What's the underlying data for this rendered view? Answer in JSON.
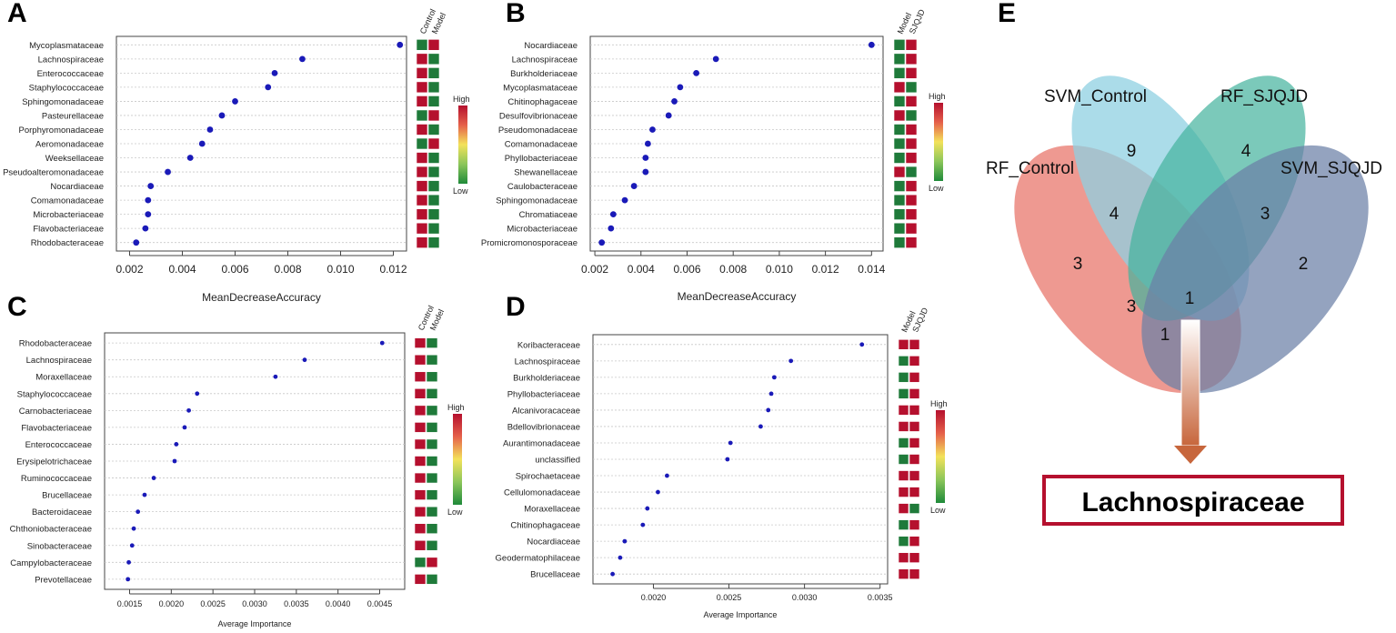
{
  "colors": {
    "point": "#1a1ab8",
    "high": "#b5102e",
    "low": "#1f7a3a"
  },
  "chart_data": [
    {
      "id": "A",
      "panel_label": "A",
      "type": "scatter",
      "xlabel": "MeanDecreaseAccuracy",
      "xlim": [
        0.0015,
        0.0125
      ],
      "xticks": [
        0.002,
        0.004,
        0.006,
        0.008,
        0.01,
        0.012
      ],
      "xtick_labels": [
        "0.002",
        "0.004",
        "0.006",
        "0.008",
        "0.010",
        "0.012"
      ],
      "heatmap_cols": [
        "Control",
        "Model"
      ],
      "legend": {
        "high": "High",
        "low": "Low"
      },
      "rows": [
        {
          "name": "Mycoplasmataceae",
          "value": 0.01225,
          "heat": [
            "L",
            "H"
          ]
        },
        {
          "name": "Lachnospiraceae",
          "value": 0.00855,
          "heat": [
            "H",
            "L"
          ]
        },
        {
          "name": "Enterococcaceae",
          "value": 0.0075,
          "heat": [
            "H",
            "L"
          ]
        },
        {
          "name": "Staphylococcaceae",
          "value": 0.00725,
          "heat": [
            "H",
            "L"
          ]
        },
        {
          "name": "Sphingomonadaceae",
          "value": 0.006,
          "heat": [
            "H",
            "L"
          ]
        },
        {
          "name": "Pasteurellaceae",
          "value": 0.0055,
          "heat": [
            "L",
            "H"
          ]
        },
        {
          "name": "Porphyromonadaceae",
          "value": 0.00505,
          "heat": [
            "H",
            "L"
          ]
        },
        {
          "name": "Aeromonadaceae",
          "value": 0.00475,
          "heat": [
            "L",
            "H"
          ]
        },
        {
          "name": "Weeksellaceae",
          "value": 0.0043,
          "heat": [
            "H",
            "L"
          ]
        },
        {
          "name": "Pseudoalteromonadaceae",
          "value": 0.00345,
          "heat": [
            "H",
            "L"
          ]
        },
        {
          "name": "Nocardiaceae",
          "value": 0.0028,
          "heat": [
            "H",
            "L"
          ]
        },
        {
          "name": "Comamonadaceae",
          "value": 0.0027,
          "heat": [
            "H",
            "L"
          ]
        },
        {
          "name": "Microbacteriaceae",
          "value": 0.0027,
          "heat": [
            "H",
            "L"
          ]
        },
        {
          "name": "Flavobacteriaceae",
          "value": 0.0026,
          "heat": [
            "H",
            "L"
          ]
        },
        {
          "name": "Rhodobacteraceae",
          "value": 0.00225,
          "heat": [
            "H",
            "L"
          ]
        }
      ]
    },
    {
      "id": "B",
      "panel_label": "B",
      "type": "scatter",
      "xlabel": "MeanDecreaseAccuracy",
      "xlim": [
        0.0018,
        0.0145
      ],
      "xticks": [
        0.002,
        0.004,
        0.006,
        0.008,
        0.01,
        0.012,
        0.014
      ],
      "xtick_labels": [
        "0.002",
        "0.004",
        "0.006",
        "0.008",
        "0.010",
        "0.012",
        "0.014"
      ],
      "heatmap_cols": [
        "Model",
        "SJQJD"
      ],
      "legend": {
        "high": "High",
        "low": "Low"
      },
      "rows": [
        {
          "name": "Nocardiaceae",
          "value": 0.014,
          "heat": [
            "L",
            "H"
          ]
        },
        {
          "name": "Lachnospiraceae",
          "value": 0.00725,
          "heat": [
            "L",
            "H"
          ]
        },
        {
          "name": "Burkholderiaceae",
          "value": 0.0064,
          "heat": [
            "L",
            "H"
          ]
        },
        {
          "name": "Mycoplasmataceae",
          "value": 0.0057,
          "heat": [
            "H",
            "L"
          ]
        },
        {
          "name": "Chitinophagaceae",
          "value": 0.00545,
          "heat": [
            "L",
            "H"
          ]
        },
        {
          "name": "Desulfovibrionaceae",
          "value": 0.0052,
          "heat": [
            "H",
            "L"
          ]
        },
        {
          "name": "Pseudomonadaceae",
          "value": 0.0045,
          "heat": [
            "L",
            "H"
          ]
        },
        {
          "name": "Comamonadaceae",
          "value": 0.0043,
          "heat": [
            "L",
            "H"
          ]
        },
        {
          "name": "Phyllobacteriaceae",
          "value": 0.0042,
          "heat": [
            "L",
            "H"
          ]
        },
        {
          "name": "Shewanellaceae",
          "value": 0.0042,
          "heat": [
            "H",
            "L"
          ]
        },
        {
          "name": "Caulobacteraceae",
          "value": 0.0037,
          "heat": [
            "L",
            "H"
          ]
        },
        {
          "name": "Sphingomonadaceae",
          "value": 0.0033,
          "heat": [
            "L",
            "H"
          ]
        },
        {
          "name": "Chromatiaceae",
          "value": 0.0028,
          "heat": [
            "L",
            "H"
          ]
        },
        {
          "name": "Microbacteriaceae",
          "value": 0.0027,
          "heat": [
            "L",
            "H"
          ]
        },
        {
          "name": "Promicromonosporaceae",
          "value": 0.0023,
          "heat": [
            "L",
            "H"
          ]
        }
      ]
    },
    {
      "id": "C",
      "panel_label": "C",
      "type": "scatter",
      "xlabel": "Average Importance",
      "xlim": [
        0.0012,
        0.0048
      ],
      "xticks": [
        0.0015,
        0.002,
        0.0025,
        0.003,
        0.0035,
        0.004,
        0.0045
      ],
      "xtick_labels": [
        "0.0015",
        "0.0020",
        "0.0025",
        "0.0030",
        "0.0035",
        "0.0040",
        "0.0045"
      ],
      "heatmap_cols": [
        "Control",
        "Model"
      ],
      "legend": {
        "high": "High",
        "low": "Low"
      },
      "rows": [
        {
          "name": "Rhodobacteraceae",
          "value": 0.00453,
          "heat": [
            "H",
            "L"
          ]
        },
        {
          "name": "Lachnospiraceae",
          "value": 0.0036,
          "heat": [
            "H",
            "L"
          ]
        },
        {
          "name": "Moraxellaceae",
          "value": 0.00325,
          "heat": [
            "H",
            "L"
          ]
        },
        {
          "name": "Staphylococcaceae",
          "value": 0.00231,
          "heat": [
            "H",
            "L"
          ]
        },
        {
          "name": "Carnobacteriaceae",
          "value": 0.00221,
          "heat": [
            "H",
            "L"
          ]
        },
        {
          "name": "Flavobacteriaceae",
          "value": 0.00216,
          "heat": [
            "H",
            "L"
          ]
        },
        {
          "name": "Enterococcaceae",
          "value": 0.00206,
          "heat": [
            "H",
            "L"
          ]
        },
        {
          "name": "Erysipelotrichaceae",
          "value": 0.00204,
          "heat": [
            "H",
            "L"
          ]
        },
        {
          "name": "Ruminococcaceae",
          "value": 0.00179,
          "heat": [
            "H",
            "L"
          ]
        },
        {
          "name": "Brucellaceae",
          "value": 0.00168,
          "heat": [
            "H",
            "L"
          ]
        },
        {
          "name": "Bacteroidaceae",
          "value": 0.0016,
          "heat": [
            "H",
            "L"
          ]
        },
        {
          "name": "Chthoniobacteraceae",
          "value": 0.00155,
          "heat": [
            "H",
            "L"
          ]
        },
        {
          "name": "Sinobacteraceae",
          "value": 0.00153,
          "heat": [
            "H",
            "L"
          ]
        },
        {
          "name": "Campylobacteraceae",
          "value": 0.00149,
          "heat": [
            "L",
            "H"
          ]
        },
        {
          "name": "Prevotellaceae",
          "value": 0.00148,
          "heat": [
            "H",
            "L"
          ]
        }
      ]
    },
    {
      "id": "D",
      "panel_label": "D",
      "type": "scatter",
      "xlabel": "Average Importance",
      "xlim": [
        0.0016,
        0.00355
      ],
      "xticks": [
        0.002,
        0.0025,
        0.003,
        0.0035
      ],
      "xtick_labels": [
        "0.0020",
        "0.0025",
        "0.0030",
        "0.0035"
      ],
      "heatmap_cols": [
        "Model",
        "SJQJD"
      ],
      "legend": {
        "high": "High",
        "low": "Low"
      },
      "rows": [
        {
          "name": "Koribacteraceae",
          "value": 0.00338,
          "heat": [
            "H",
            "H"
          ]
        },
        {
          "name": "Lachnospiraceae",
          "value": 0.00291,
          "heat": [
            "L",
            "H"
          ]
        },
        {
          "name": "Burkholderiaceae",
          "value": 0.0028,
          "heat": [
            "L",
            "H"
          ]
        },
        {
          "name": "Phyllobacteriaceae",
          "value": 0.00278,
          "heat": [
            "L",
            "H"
          ]
        },
        {
          "name": "Alcanivoracaceae",
          "value": 0.00276,
          "heat": [
            "H",
            "H"
          ]
        },
        {
          "name": "Bdellovibrionaceae",
          "value": 0.00271,
          "heat": [
            "H",
            "H"
          ]
        },
        {
          "name": "Aurantimonadaceae",
          "value": 0.00251,
          "heat": [
            "L",
            "H"
          ]
        },
        {
          "name": "unclassified",
          "value": 0.00249,
          "heat": [
            "L",
            "H"
          ]
        },
        {
          "name": "Spirochaetaceae",
          "value": 0.00209,
          "heat": [
            "H",
            "H"
          ]
        },
        {
          "name": "Cellulomonadaceae",
          "value": 0.00203,
          "heat": [
            "H",
            "H"
          ]
        },
        {
          "name": "Moraxellaceae",
          "value": 0.00196,
          "heat": [
            "H",
            "L"
          ]
        },
        {
          "name": "Chitinophagaceae",
          "value": 0.00193,
          "heat": [
            "L",
            "H"
          ]
        },
        {
          "name": "Nocardiaceae",
          "value": 0.00181,
          "heat": [
            "L",
            "H"
          ]
        },
        {
          "name": "Geodermatophilaceae",
          "value": 0.00178,
          "heat": [
            "H",
            "H"
          ]
        },
        {
          "name": "Brucellaceae",
          "value": 0.00173,
          "heat": [
            "H",
            "H"
          ]
        }
      ]
    },
    {
      "id": "E",
      "panel_label": "E",
      "type": "venn",
      "sets": [
        "RF_Control",
        "SVM_Control",
        "RF_SJQJD",
        "SVM_SJQJD"
      ],
      "set_colors": [
        "#e8776c",
        "#8fd0e2",
        "#43b29d",
        "#6b7fa6"
      ],
      "regions": [
        {
          "key": "svm_control_only",
          "count": "9"
        },
        {
          "key": "rf_sjqjd_only",
          "count": "4"
        },
        {
          "key": "rf_svm_control",
          "count": "4"
        },
        {
          "key": "svm_control_rf_sjqjd_svm_sjqjd",
          "count": "3"
        },
        {
          "key": "rf_control_only",
          "count": "3"
        },
        {
          "key": "svm_sjqjd_only",
          "count": "2"
        },
        {
          "key": "rf_control_svm_control_rf_sjqjd",
          "count": "3"
        },
        {
          "key": "all_four",
          "count": "1"
        },
        {
          "key": "rf_control_rf_sjqjd_svm_sjqjd",
          "count": "1"
        }
      ],
      "result": "Lachnospiraceae"
    }
  ]
}
